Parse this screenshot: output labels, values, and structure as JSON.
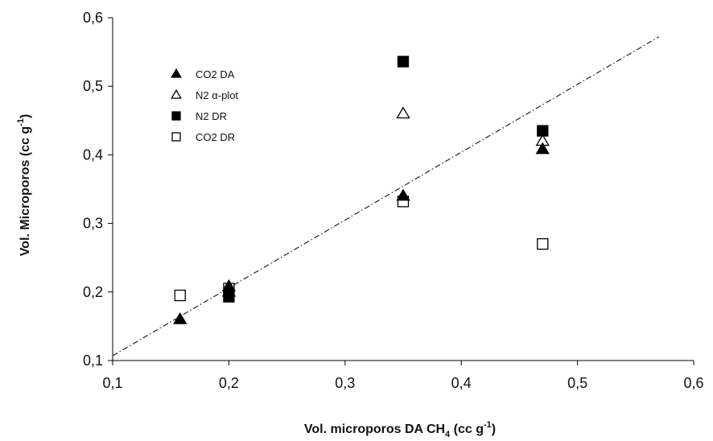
{
  "chart_data": {
    "type": "scatter",
    "xlabel": "Vol. microporos DA  CH4 (cc g-1)",
    "ylabel": "Vol. Microporos (cc g-1)",
    "xlim": [
      0.1,
      0.6
    ],
    "ylim": [
      0.1,
      0.6
    ],
    "x_ticks": [
      "0,1",
      "0,2",
      "0,3",
      "0,4",
      "0,5",
      "0,6"
    ],
    "y_ticks": [
      "0,1",
      "0,2",
      "0,3",
      "0,4",
      "0,5",
      "0,6"
    ],
    "grid": false,
    "legend_position": "top-left",
    "series": [
      {
        "name": "CO2 DA",
        "marker": "filled-triangle",
        "x": [
          0.158,
          0.2,
          0.35,
          0.47
        ],
        "y": [
          0.16,
          0.208,
          0.34,
          0.408
        ]
      },
      {
        "name": "N2 α-plot",
        "marker": "open-triangle",
        "x": [
          0.2,
          0.35,
          0.47
        ],
        "y": [
          0.2,
          0.46,
          0.42
        ]
      },
      {
        "name": "N2 DR",
        "marker": "filled-square",
        "x": [
          0.2,
          0.35,
          0.47
        ],
        "y": [
          0.193,
          0.536,
          0.435
        ]
      },
      {
        "name": "CO2 DR",
        "marker": "open-square",
        "x": [
          0.158,
          0.2,
          0.35,
          0.47
        ],
        "y": [
          0.195,
          0.205,
          0.332,
          0.27
        ]
      }
    ],
    "trend_line": {
      "style": "dash-dot",
      "x": [
        0.1,
        0.57
      ],
      "y": [
        0.107,
        0.572
      ]
    }
  }
}
